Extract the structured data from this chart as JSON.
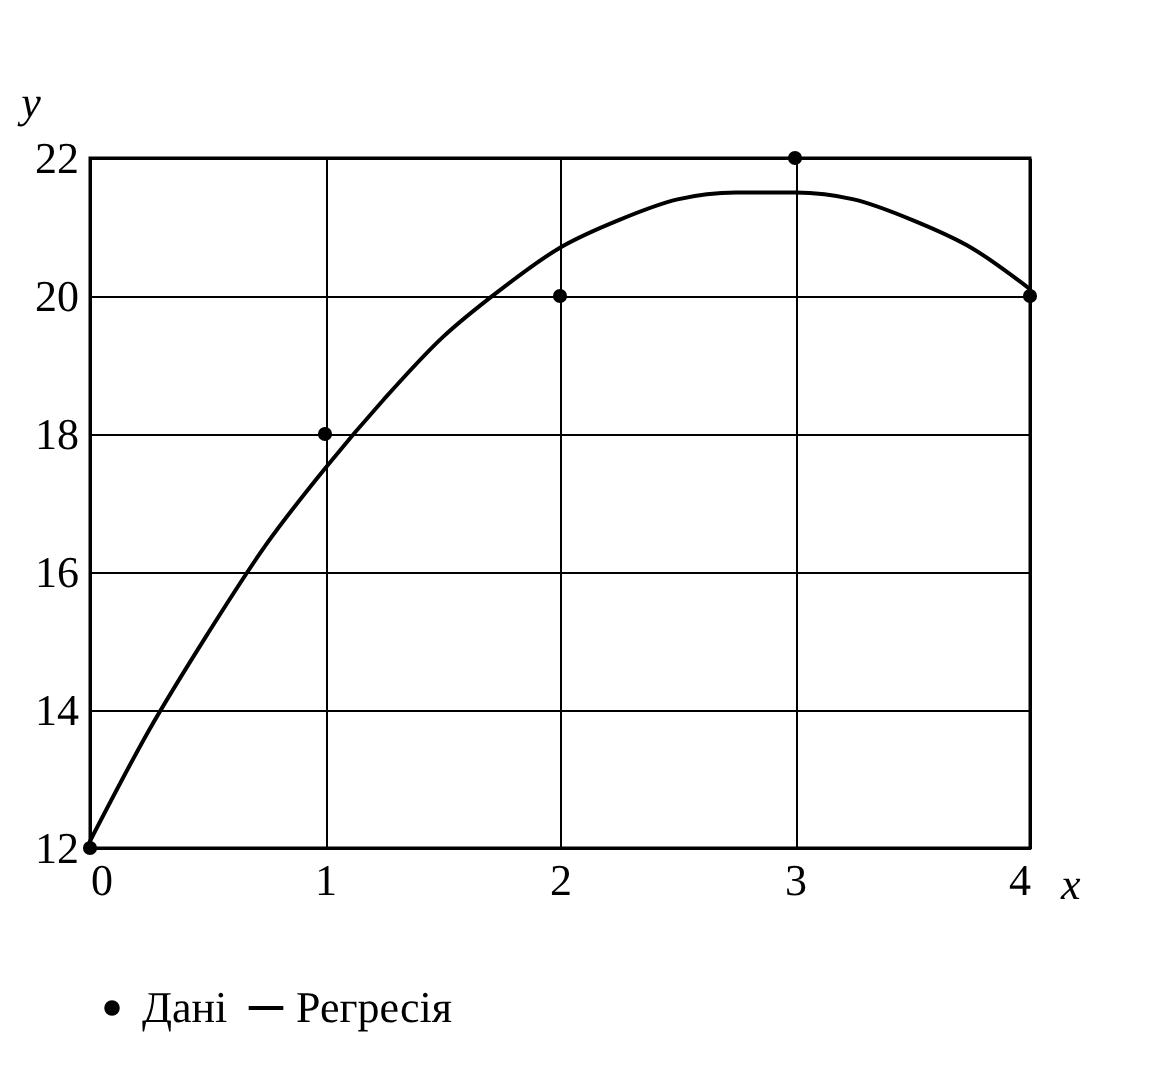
{
  "chart_data": {
    "type": "line",
    "xlabel": "x",
    "ylabel": "y",
    "xlim": [
      0,
      4
    ],
    "xticks": [
      0,
      1,
      2,
      3,
      4
    ],
    "ylim": [
      12,
      22
    ],
    "yticks": [
      12,
      14,
      16,
      18,
      20,
      22
    ],
    "grid": true,
    "legend": "bottom",
    "series": [
      {
        "name": "Дані",
        "type": "scatter",
        "marker": "circle",
        "color": "#000000",
        "x": [
          0,
          1,
          2,
          3,
          4
        ],
        "values": [
          12,
          18,
          20,
          22,
          20
        ]
      },
      {
        "name": "Регресія",
        "type": "line",
        "line_style": "solid",
        "color": "#000000",
        "x": [
          0,
          0.25,
          0.5,
          0.75,
          1,
          1.25,
          1.5,
          1.75,
          2,
          2.25,
          2.5,
          2.75,
          3,
          3.25,
          3.5,
          3.75,
          4
        ],
        "values": [
          12.1,
          13.7,
          15.1,
          16.4,
          17.5,
          18.5,
          19.4,
          20.1,
          20.7,
          21.1,
          21.4,
          21.5,
          21.5,
          21.4,
          21.1,
          20.7,
          20.1
        ]
      }
    ]
  }
}
